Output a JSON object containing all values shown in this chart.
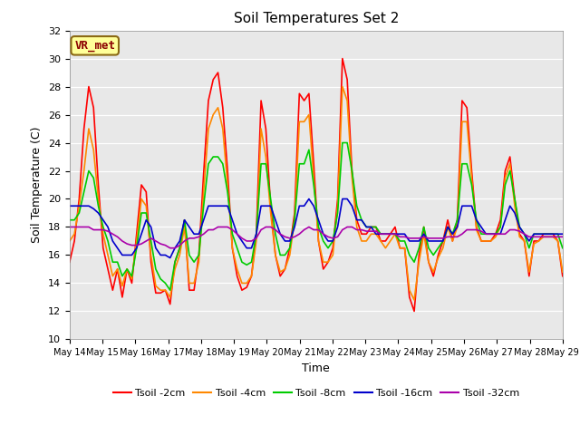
{
  "title": "Soil Temperatures Set 2",
  "xlabel": "Time",
  "ylabel": "Soil Temperature (C)",
  "ylim": [
    10,
    32
  ],
  "fig_facecolor": "#ffffff",
  "plot_bg_color": "#e8e8e8",
  "annotation_text": "VR_met",
  "annotation_bbox_facecolor": "#ffff99",
  "annotation_bbox_edgecolor": "#8B6914",
  "annotation_text_color": "#8B0000",
  "series_names": [
    "Tsoil -2cm",
    "Tsoil -4cm",
    "Tsoil -8cm",
    "Tsoil -16cm",
    "Tsoil -32cm"
  ],
  "series_colors": [
    "#ff0000",
    "#ff8800",
    "#00cc00",
    "#0000cc",
    "#aa00aa"
  ],
  "series_lw": [
    1.2,
    1.2,
    1.2,
    1.2,
    1.2
  ],
  "xtick_labels": [
    "May 14",
    "May 15",
    "May 16",
    "May 17",
    "May 18",
    "May 19",
    "May 20",
    "May 21",
    "May 22",
    "May 23",
    "May 24",
    "May 25",
    "May 26",
    "May 27",
    "May 28",
    "May 29"
  ],
  "yticks": [
    10,
    12,
    14,
    16,
    18,
    20,
    22,
    24,
    26,
    28,
    30,
    32
  ],
  "t2cm": [
    15.5,
    17.0,
    20.0,
    25.0,
    28.0,
    26.5,
    21.0,
    16.5,
    15.0,
    13.5,
    15.0,
    13.0,
    15.0,
    14.0,
    17.5,
    21.0,
    20.5,
    15.5,
    13.3,
    13.3,
    13.5,
    12.5,
    15.5,
    16.5,
    18.5,
    13.5,
    13.5,
    16.0,
    21.8,
    27.0,
    28.5,
    29.0,
    26.5,
    22.0,
    16.5,
    14.5,
    13.5,
    13.7,
    14.5,
    17.5,
    27.0,
    25.0,
    19.5,
    16.0,
    14.5,
    15.0,
    16.5,
    19.0,
    27.5,
    27.0,
    27.5,
    22.5,
    17.0,
    15.0,
    15.5,
    16.5,
    20.0,
    30.0,
    28.5,
    22.0,
    18.5,
    17.5,
    17.5,
    18.0,
    18.0,
    17.0,
    17.0,
    17.5,
    18.0,
    16.5,
    16.5,
    13.0,
    12.0,
    16.0,
    18.0,
    15.5,
    14.5,
    16.0,
    17.0,
    18.5,
    17.0,
    18.5,
    27.0,
    26.5,
    22.0,
    18.0,
    17.0,
    17.0,
    17.0,
    17.5,
    18.5,
    22.0,
    23.0,
    20.0,
    17.5,
    17.0,
    14.5,
    17.0,
    17.0,
    17.5,
    17.5,
    17.5,
    17.0,
    14.5
  ],
  "t4cm": [
    17.0,
    17.5,
    19.5,
    22.0,
    25.0,
    23.5,
    20.0,
    17.5,
    16.0,
    14.5,
    15.0,
    13.8,
    15.0,
    14.3,
    17.0,
    20.0,
    19.5,
    16.0,
    13.8,
    13.5,
    13.5,
    13.0,
    15.0,
    16.0,
    18.0,
    14.0,
    14.0,
    15.5,
    20.5,
    25.0,
    26.0,
    26.5,
    25.0,
    21.0,
    16.5,
    15.0,
    14.0,
    14.0,
    14.5,
    17.0,
    25.0,
    23.0,
    19.0,
    16.0,
    14.8,
    15.0,
    16.0,
    18.5,
    25.5,
    25.5,
    26.0,
    21.5,
    17.0,
    15.5,
    15.5,
    16.0,
    19.5,
    28.0,
    27.0,
    21.5,
    18.0,
    17.0,
    17.0,
    17.5,
    17.5,
    17.0,
    16.5,
    17.0,
    17.5,
    16.5,
    16.5,
    13.5,
    12.8,
    15.5,
    17.5,
    15.5,
    14.8,
    15.8,
    16.5,
    18.0,
    17.0,
    18.0,
    25.5,
    25.5,
    21.5,
    17.8,
    17.0,
    17.0,
    17.0,
    17.3,
    18.0,
    21.5,
    22.5,
    19.5,
    17.3,
    17.0,
    14.8,
    16.8,
    17.0,
    17.3,
    17.3,
    17.3,
    17.0,
    14.8
  ],
  "t8cm": [
    18.5,
    18.5,
    19.0,
    20.5,
    22.0,
    21.5,
    19.5,
    18.0,
    17.0,
    15.5,
    15.5,
    14.5,
    15.0,
    14.5,
    16.5,
    19.0,
    19.0,
    17.0,
    15.0,
    14.3,
    14.0,
    13.5,
    15.5,
    16.5,
    18.5,
    16.0,
    15.5,
    16.0,
    19.5,
    22.5,
    23.0,
    23.0,
    22.5,
    20.5,
    17.5,
    16.5,
    15.5,
    15.3,
    15.5,
    17.5,
    22.5,
    22.5,
    20.0,
    17.5,
    16.0,
    16.0,
    16.5,
    18.5,
    22.5,
    22.5,
    23.5,
    21.0,
    18.0,
    17.0,
    16.5,
    17.0,
    19.0,
    24.0,
    24.0,
    22.0,
    19.5,
    18.5,
    18.0,
    18.0,
    18.0,
    17.5,
    17.5,
    17.5,
    17.5,
    17.0,
    17.0,
    16.0,
    15.5,
    16.5,
    18.0,
    16.5,
    16.0,
    16.5,
    17.0,
    18.0,
    17.5,
    18.5,
    22.5,
    22.5,
    21.0,
    18.5,
    17.5,
    17.5,
    17.5,
    17.5,
    18.0,
    21.0,
    22.0,
    20.0,
    18.0,
    17.5,
    16.5,
    17.5,
    17.5,
    17.5,
    17.5,
    17.5,
    17.5,
    16.5
  ],
  "t16cm": [
    19.5,
    19.5,
    19.5,
    19.5,
    19.5,
    19.3,
    19.0,
    18.5,
    18.0,
    17.0,
    16.5,
    16.0,
    16.0,
    16.0,
    16.5,
    17.5,
    18.5,
    18.0,
    16.5,
    16.0,
    16.0,
    15.8,
    16.5,
    17.0,
    18.5,
    18.0,
    17.5,
    17.5,
    18.5,
    19.5,
    19.5,
    19.5,
    19.5,
    19.5,
    18.5,
    17.5,
    17.0,
    16.5,
    16.5,
    17.5,
    19.5,
    19.5,
    19.5,
    18.5,
    17.5,
    17.0,
    17.0,
    18.0,
    19.5,
    19.5,
    20.0,
    19.5,
    18.5,
    17.5,
    17.0,
    17.0,
    18.0,
    20.0,
    20.0,
    19.5,
    18.5,
    18.5,
    18.0,
    18.0,
    17.5,
    17.5,
    17.5,
    17.5,
    17.5,
    17.5,
    17.5,
    17.0,
    17.0,
    17.0,
    17.5,
    17.0,
    17.0,
    17.0,
    17.0,
    18.0,
    17.5,
    18.0,
    19.5,
    19.5,
    19.5,
    18.5,
    18.0,
    17.5,
    17.5,
    17.5,
    17.5,
    18.5,
    19.5,
    19.0,
    18.0,
    17.5,
    17.0,
    17.5,
    17.5,
    17.5,
    17.5,
    17.5,
    17.5,
    17.5
  ],
  "t32cm": [
    18.0,
    18.0,
    18.0,
    18.0,
    18.0,
    17.8,
    17.8,
    17.8,
    17.7,
    17.5,
    17.3,
    17.0,
    16.8,
    16.7,
    16.7,
    16.8,
    17.0,
    17.2,
    17.0,
    16.8,
    16.7,
    16.5,
    16.5,
    16.7,
    17.0,
    17.2,
    17.2,
    17.3,
    17.5,
    17.8,
    17.8,
    18.0,
    18.0,
    18.0,
    17.8,
    17.5,
    17.2,
    17.0,
    17.0,
    17.2,
    17.8,
    18.0,
    18.0,
    17.8,
    17.5,
    17.3,
    17.2,
    17.3,
    17.5,
    17.8,
    18.0,
    17.8,
    17.8,
    17.5,
    17.3,
    17.2,
    17.3,
    17.8,
    18.0,
    18.0,
    17.8,
    17.8,
    17.7,
    17.7,
    17.7,
    17.5,
    17.5,
    17.5,
    17.5,
    17.3,
    17.3,
    17.2,
    17.2,
    17.2,
    17.3,
    17.2,
    17.2,
    17.2,
    17.2,
    17.3,
    17.3,
    17.3,
    17.5,
    17.8,
    17.8,
    17.8,
    17.7,
    17.5,
    17.5,
    17.5,
    17.5,
    17.5,
    17.8,
    17.8,
    17.7,
    17.5,
    17.3,
    17.3,
    17.3,
    17.3,
    17.3,
    17.3,
    17.3,
    17.3
  ]
}
